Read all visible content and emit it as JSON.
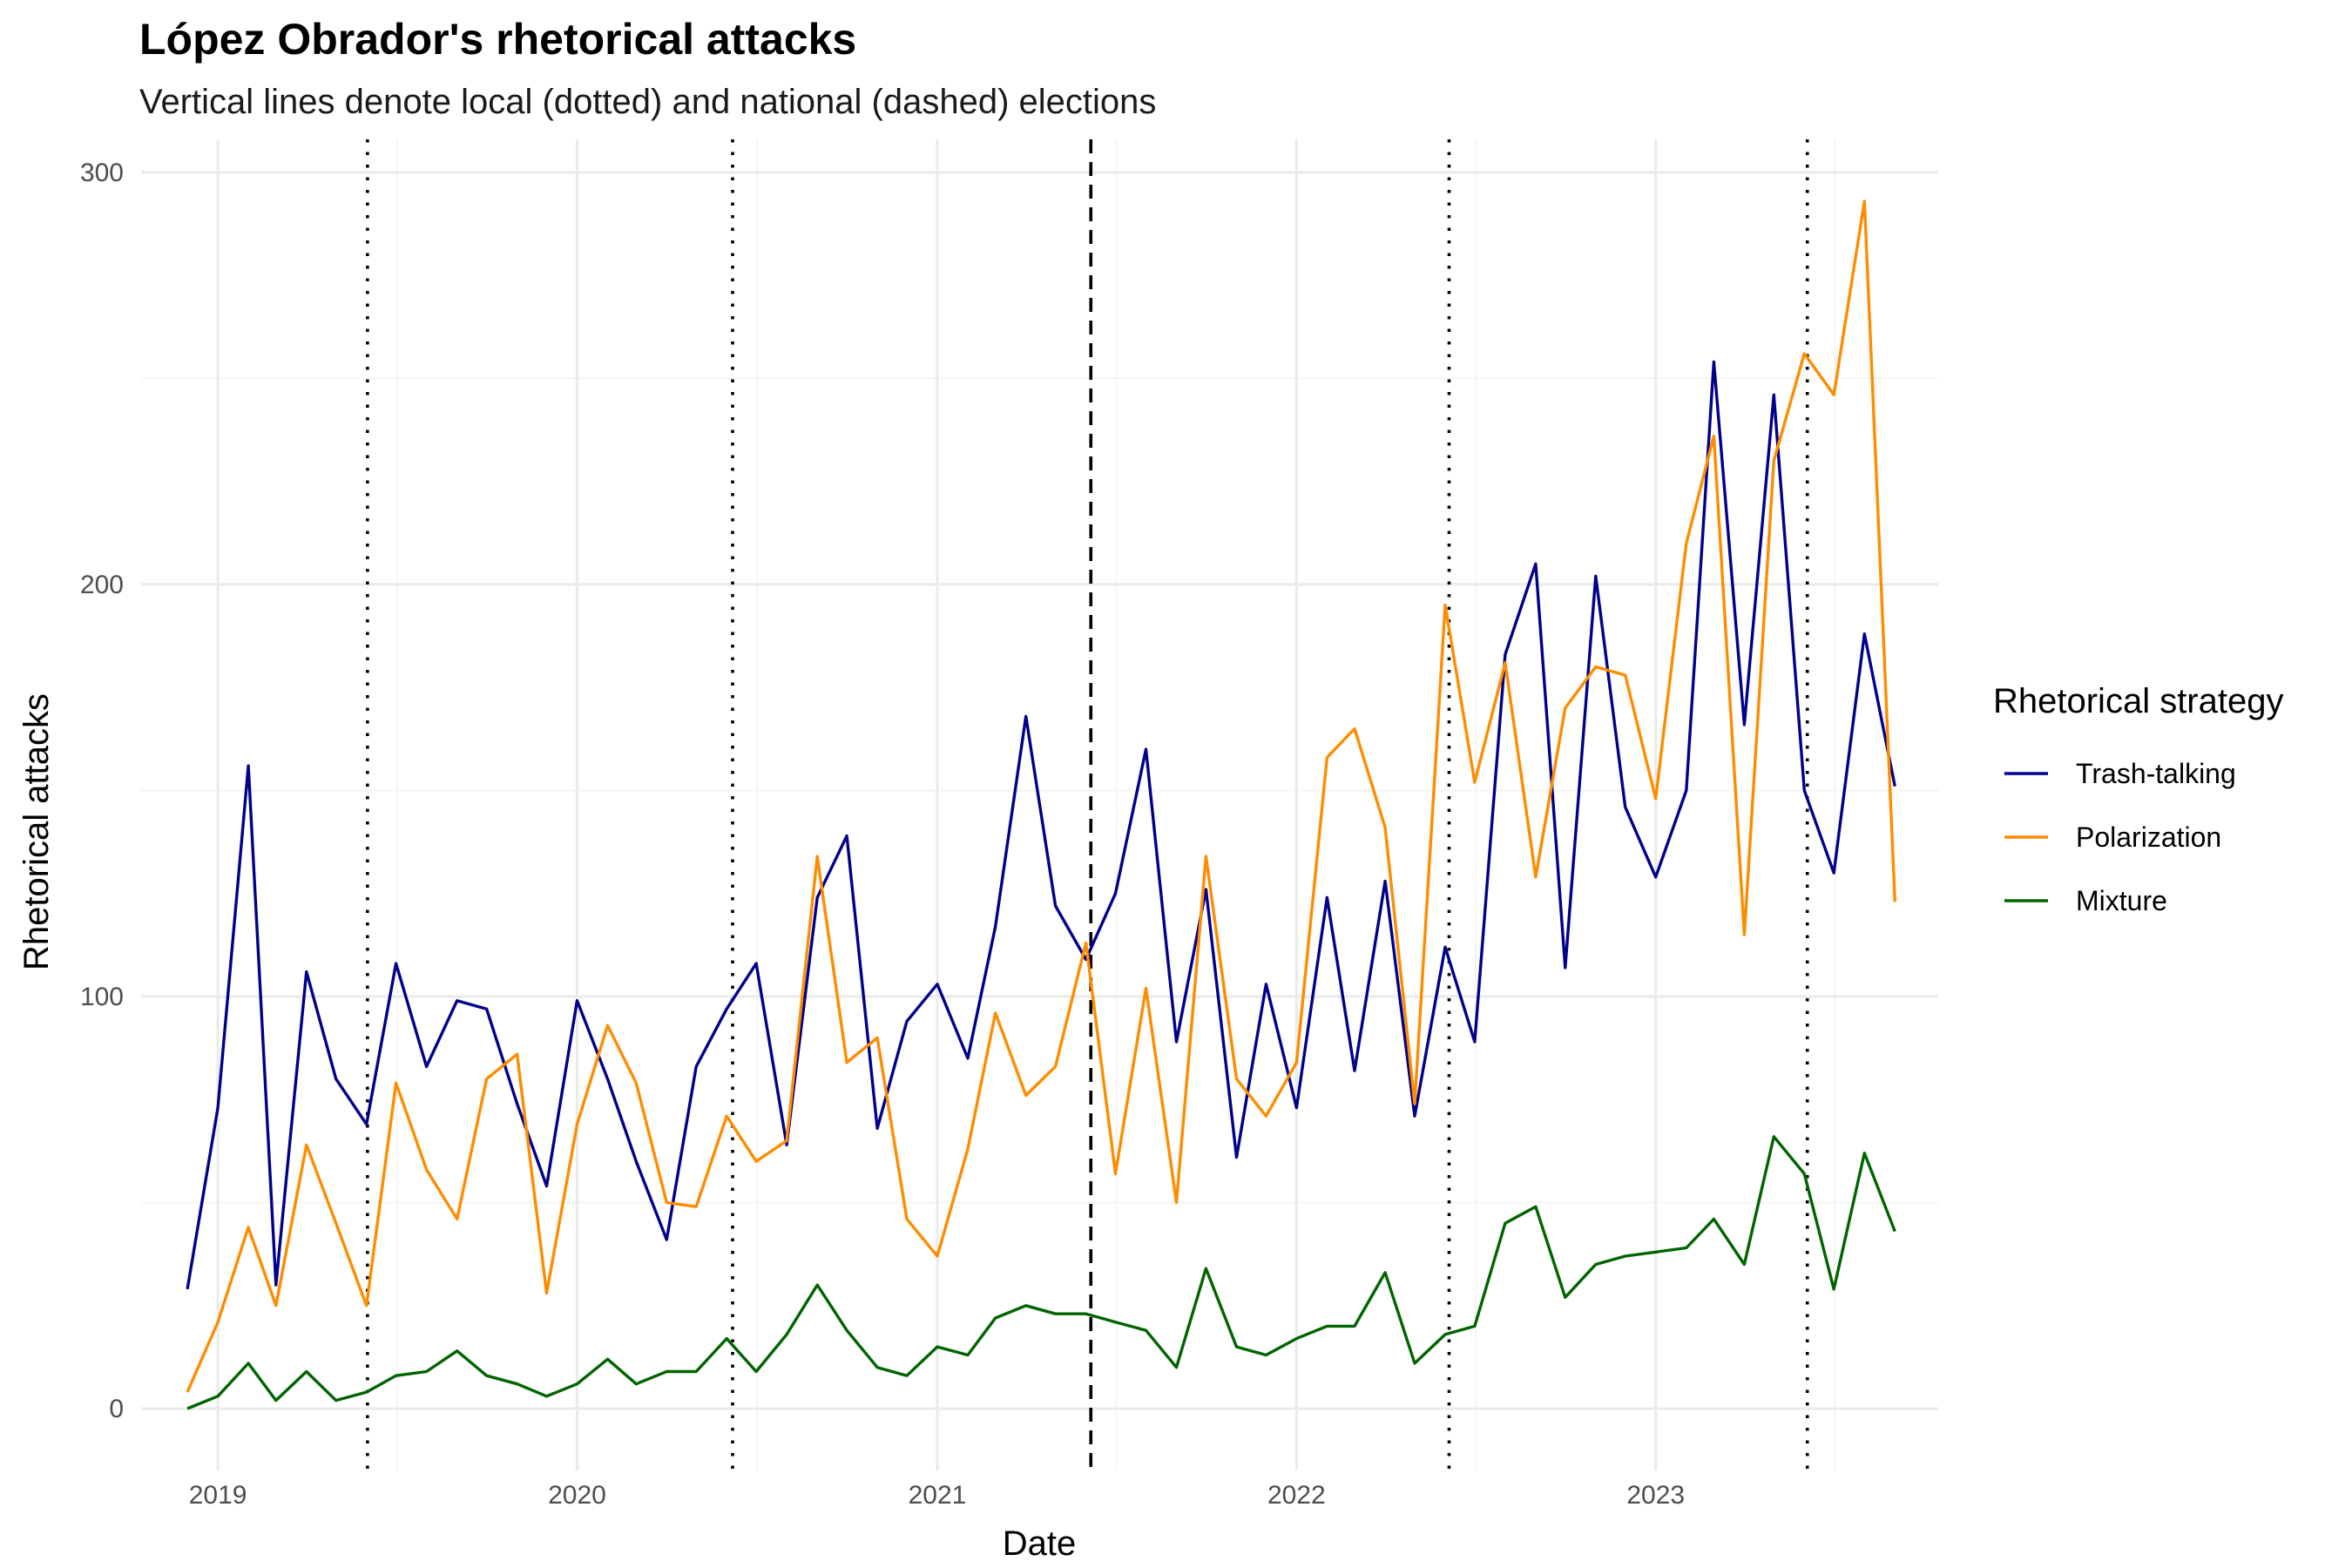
{
  "chart_data": {
    "type": "line",
    "title": "López Obrador's rhetorical attacks",
    "subtitle": "Vertical lines denote local (dotted) and national (dashed) elections",
    "xlabel": "Date",
    "ylabel": "Rhetorical attacks",
    "x_axis_type": "date",
    "xlim": [
      "2018-10-15",
      "2023-10-15"
    ],
    "ylim": [
      -15,
      308
    ],
    "x_ticks": [
      {
        "date": "2019-01-01",
        "label": "2019"
      },
      {
        "date": "2020-01-01",
        "label": "2020"
      },
      {
        "date": "2021-01-01",
        "label": "2021"
      },
      {
        "date": "2022-01-01",
        "label": "2022"
      },
      {
        "date": "2023-01-01",
        "label": "2023"
      }
    ],
    "y_ticks": [
      0,
      100,
      200,
      300
    ],
    "grid": true,
    "legend": {
      "title": "Rhetorical strategy",
      "position": "right"
    },
    "dates": [
      "2018-12",
      "2019-01",
      "2019-02",
      "2019-03",
      "2019-04",
      "2019-05",
      "2019-06",
      "2019-07",
      "2019-08",
      "2019-09",
      "2019-10",
      "2019-11",
      "2019-12",
      "2020-01",
      "2020-02",
      "2020-03",
      "2020-04",
      "2020-05",
      "2020-06",
      "2020-07",
      "2020-08",
      "2020-09",
      "2020-10",
      "2020-11",
      "2020-12",
      "2021-01",
      "2021-02",
      "2021-03",
      "2021-04",
      "2021-05",
      "2021-06",
      "2021-07",
      "2021-08",
      "2021-09",
      "2021-10",
      "2021-11",
      "2021-12",
      "2022-01",
      "2022-02",
      "2022-03",
      "2022-04",
      "2022-05",
      "2022-06",
      "2022-07",
      "2022-08",
      "2022-09",
      "2022-10",
      "2022-11",
      "2022-12",
      "2023-01",
      "2023-02",
      "2023-03",
      "2023-04",
      "2023-05",
      "2023-06",
      "2023-07",
      "2023-08",
      "2023-09"
    ],
    "series": [
      {
        "name": "Trash-talking",
        "color": "#00008b",
        "values": [
          29,
          73,
          156,
          30,
          106,
          80,
          69,
          108,
          83,
          99,
          97,
          74,
          54,
          99,
          80,
          60,
          41,
          83,
          97,
          108,
          64,
          124,
          139,
          68,
          94,
          103,
          85,
          117,
          168,
          122,
          109,
          125,
          160,
          89,
          126,
          61,
          103,
          73,
          124,
          82,
          128,
          71,
          112,
          89,
          183,
          205,
          107,
          202,
          146,
          129,
          150,
          254,
          166,
          246,
          150,
          130,
          188,
          151
        ]
      },
      {
        "name": "Polarization",
        "color": "#ff8c00",
        "values": [
          4,
          21,
          44,
          25,
          64,
          45,
          25,
          79,
          58,
          46,
          80,
          86,
          28,
          69,
          93,
          79,
          50,
          49,
          71,
          60,
          65,
          134,
          84,
          90,
          46,
          37,
          63,
          96,
          76,
          83,
          113,
          57,
          102,
          50,
          134,
          80,
          71,
          84,
          158,
          165,
          141,
          74,
          195,
          152,
          181,
          129,
          170,
          180,
          178,
          148,
          210,
          236,
          115,
          230,
          256,
          246,
          293,
          123
        ]
      },
      {
        "name": "Mixture",
        "color": "#006400",
        "values": [
          0,
          3,
          11,
          2,
          9,
          2,
          4,
          8,
          9,
          14,
          8,
          6,
          3,
          6,
          12,
          6,
          9,
          9,
          17,
          9,
          18,
          30,
          19,
          10,
          8,
          15,
          13,
          22,
          25,
          23,
          23,
          21,
          19,
          10,
          34,
          15,
          13,
          17,
          20,
          20,
          33,
          11,
          18,
          20,
          45,
          49,
          27,
          35,
          37,
          38,
          39,
          46,
          35,
          66,
          57,
          29,
          62,
          43
        ]
      }
    ],
    "vertical_lines": [
      {
        "date": "2019-06-02",
        "style": "dotted"
      },
      {
        "date": "2020-06-07",
        "style": "dotted"
      },
      {
        "date": "2021-06-06",
        "style": "dashed"
      },
      {
        "date": "2022-06-05",
        "style": "dotted"
      },
      {
        "date": "2023-06-04",
        "style": "dotted"
      }
    ]
  }
}
